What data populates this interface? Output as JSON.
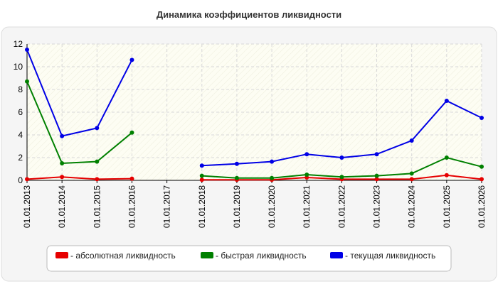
{
  "chart_data": {
    "type": "line",
    "title": "Динамика коэффициентов ликвидности",
    "xlabel": "",
    "ylabel": "",
    "ylim": [
      0,
      12
    ],
    "y_ticks": [
      "0",
      "2",
      "4",
      "6",
      "8",
      "10",
      "12"
    ],
    "grid": true,
    "legend_position": "bottom",
    "categories": [
      "01.01.2013",
      "01.01.2014",
      "01.01.2015",
      "01.01.2016",
      "01.01.2017",
      "01.01.2018",
      "01.01.2019",
      "01.01.2020",
      "01.01.2021",
      "01.01.2022",
      "01.01.2023",
      "01.01.2024",
      "01.01.2025",
      "01.01.2026"
    ],
    "series": [
      {
        "name": "- абсолютная ликвидность",
        "color": "#e60000",
        "values": [
          0.1,
          0.3,
          0.1,
          0.15,
          null,
          0.05,
          0.05,
          0.05,
          0.25,
          0.1,
          0.1,
          0.1,
          0.45,
          0.1
        ]
      },
      {
        "name": "- быстрая ликвидность",
        "color": "#008000",
        "values": [
          8.7,
          1.5,
          1.65,
          4.2,
          null,
          0.4,
          0.2,
          0.2,
          0.5,
          0.3,
          0.4,
          0.6,
          2.0,
          1.2
        ]
      },
      {
        "name": "- текущая ликвидность",
        "color": "#0000e6",
        "values": [
          11.5,
          3.9,
          4.6,
          10.6,
          null,
          1.3,
          1.45,
          1.65,
          2.3,
          2.0,
          2.3,
          3.5,
          7.0,
          5.5
        ]
      }
    ]
  }
}
